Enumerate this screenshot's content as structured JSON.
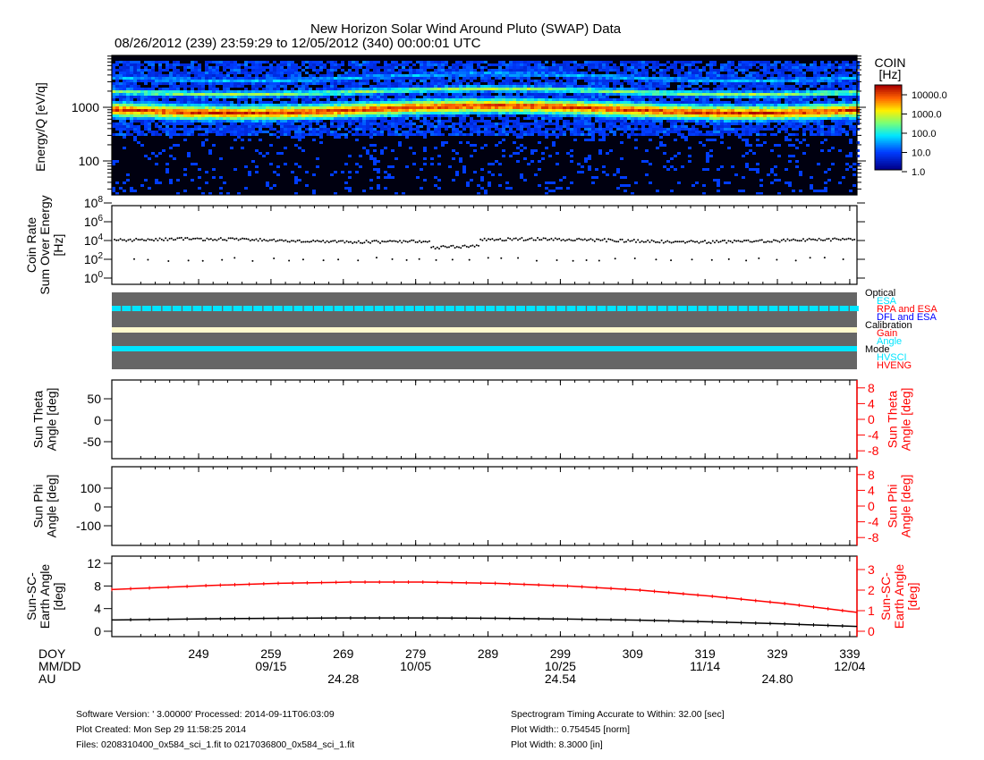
{
  "header": {
    "title": "New Horizon Solar Wind Around Pluto (SWAP) Data",
    "subtitle": "08/26/2012 (239) 23:59:29 to 12/05/2012 (340) 00:00:01 UTC"
  },
  "footer": {
    "software": "Software Version:  ' 3.00000'  Processed: 2014-09-11T06:03:09",
    "created": "Plot Created: Mon Sep 29 11:58:25 2014",
    "files": "Files: 0208310400_0x584_sci_1.fit to 0217036800_0x584_sci_1.fit",
    "timing": "Spectrogram Timing Accurate to Within: 32.00 [sec]",
    "width_norm": "Plot Width:: 0.754545 [norm]",
    "width_in": "Plot Width: 8.3000 [in]"
  },
  "colors": {
    "red": "#ff0000",
    "cyan": "#00e5ff",
    "blue": "#0000ff",
    "gray": "#666666",
    "cream": "#fffacd"
  },
  "chart_data": [
    {
      "type": "heatmap",
      "name": "spectrogram",
      "ylabel": "Energy/Q [eV/q]",
      "yticks": [
        "1000",
        "100"
      ],
      "ylim": [
        20,
        10000
      ],
      "yscale": "log",
      "colorbar": {
        "title": "COIN",
        "unit": "[Hz]",
        "ticks": [
          "10000.0",
          "1000.0",
          "100.0",
          "10.0",
          "1.0"
        ],
        "range": [
          1,
          30000
        ]
      },
      "bands": [
        {
          "energy": 1000,
          "rate": 3000
        },
        {
          "energy": 2000,
          "rate": 300
        }
      ]
    },
    {
      "type": "scatter",
      "name": "coin-rate",
      "ylabel": [
        "Coin Rate",
        "Sum Over Energy",
        "[Hz]"
      ],
      "ylim": [
        0.1,
        100000000
      ],
      "yscale": "log",
      "ytick_exponents": [
        "8",
        "6",
        "4",
        "2",
        "0"
      ],
      "typical": 10000,
      "outlier": 100
    },
    {
      "type": "table",
      "name": "mode-status",
      "legend": [
        {
          "group": "Optical",
          "items": [
            {
              "label": "ESA",
              "color": "#00e5ff"
            },
            {
              "label": "RPA and ESA",
              "color": "#ff0000"
            },
            {
              "label": "DFL and ESA",
              "color": "#0000ff"
            }
          ]
        },
        {
          "group": "Calibration",
          "items": [
            {
              "label": "Gain",
              "color": "#ff0000"
            },
            {
              "label": "Angle",
              "color": "#00e5ff"
            }
          ]
        },
        {
          "group": "Mode",
          "items": [
            {
              "label": "HVSCI",
              "color": "#00e5ff"
            },
            {
              "label": "HVENG",
              "color": "#ff0000"
            }
          ]
        }
      ]
    },
    {
      "type": "line",
      "name": "sun-theta",
      "ylabel": [
        "Sun Theta",
        "Angle [deg]"
      ],
      "ylim": [
        -90,
        90
      ],
      "yticks": [
        "50",
        "0",
        "-50"
      ],
      "ylabel_right": [
        "Sun Theta",
        "Angle [deg]"
      ],
      "ylim_right": [
        -10,
        10
      ],
      "yticks_right": [
        "8",
        "4",
        "0",
        "-4",
        "-8"
      ],
      "series": []
    },
    {
      "type": "line",
      "name": "sun-phi",
      "ylabel": [
        "Sun Phi",
        "Angle [deg]"
      ],
      "ylim": [
        -210,
        210
      ],
      "yticks": [
        "100",
        "0",
        "-100"
      ],
      "ylabel_right": [
        "Sun Phi",
        "Angle [deg]"
      ],
      "ylim_right": [
        -10,
        10
      ],
      "yticks_right": [
        "8",
        "4",
        "0",
        "-4",
        "-8"
      ],
      "series": []
    },
    {
      "type": "line",
      "name": "sun-sc-earth",
      "ylabel": [
        "Sun-SC-",
        "Earth Angle",
        "[deg]"
      ],
      "ylim": [
        0,
        13.3
      ],
      "yticks": [
        "12",
        "8",
        "4",
        "0"
      ],
      "ylabel_right": [
        "Sun-SC-",
        "Earth Angle",
        "[deg]"
      ],
      "ylim_right": [
        0,
        3.65
      ],
      "yticks_right": [
        "3",
        "2",
        "1",
        "0"
      ],
      "x": [
        237,
        250,
        260,
        270,
        280,
        290,
        300,
        310,
        320,
        330,
        340
      ],
      "series": [
        {
          "name": "Sun-SC-Earth (left)",
          "color": "#000000",
          "values": [
            2.0,
            2.2,
            2.3,
            2.35,
            2.35,
            2.3,
            2.15,
            1.95,
            1.65,
            1.3,
            0.85
          ]
        },
        {
          "name": "Sun-SC-Earth (right)",
          "color": "#ff0000",
          "values": [
            2.03,
            2.22,
            2.33,
            2.39,
            2.39,
            2.33,
            2.2,
            2.0,
            1.7,
            1.35,
            0.92
          ]
        }
      ]
    }
  ],
  "xaxis": {
    "range": [
      237,
      340
    ],
    "row_labels": [
      "DOY",
      "MM/DD",
      "AU"
    ],
    "doy": [
      "249",
      "259",
      "269",
      "279",
      "289",
      "299",
      "309",
      "319",
      "329",
      "339"
    ],
    "doy_values": [
      249,
      259,
      269,
      279,
      289,
      299,
      309,
      319,
      329,
      339
    ],
    "mmdd": [
      {
        "doy": 259,
        "label": "09/15"
      },
      {
        "doy": 279,
        "label": "10/05"
      },
      {
        "doy": 299,
        "label": "10/25"
      },
      {
        "doy": 319,
        "label": "11/14"
      },
      {
        "doy": 339,
        "label": "12/04"
      }
    ],
    "au": [
      {
        "doy": 269,
        "label": "24.28"
      },
      {
        "doy": 299,
        "label": "24.54"
      },
      {
        "doy": 329,
        "label": "24.80"
      }
    ]
  }
}
